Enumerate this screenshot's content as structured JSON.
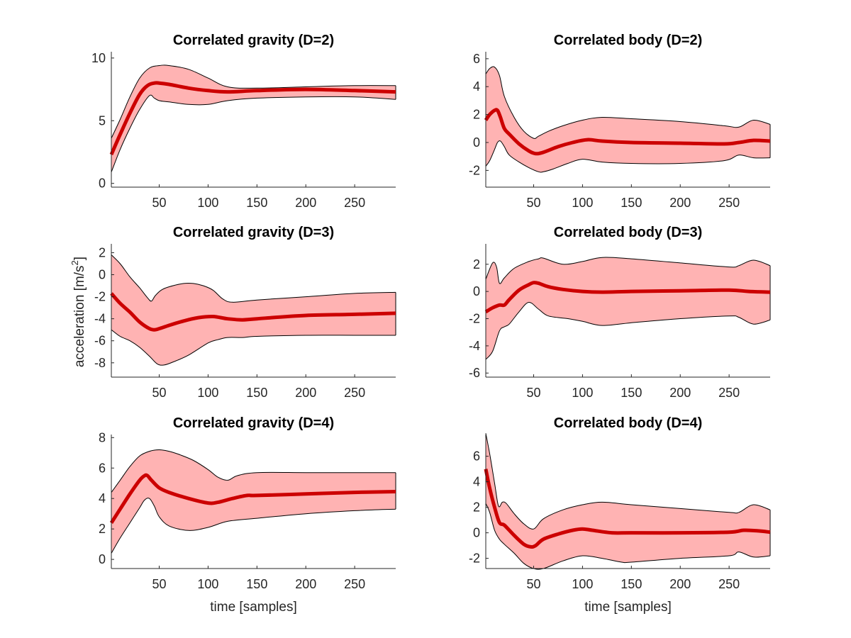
{
  "figure": {
    "ylabel": "acceleration [m/s",
    "ylabel_sup": "2",
    "ylabel_close": "]",
    "band_color": "#ffb3b3",
    "line_color": "#cc0000",
    "outline_color": "#000000"
  },
  "chart_data": [
    {
      "type": "line",
      "title": "Correlated gravity (D=2)",
      "xlabel": "",
      "xlim": [
        1,
        292
      ],
      "ylim": [
        -0.3,
        10.5
      ],
      "xticks": [
        50,
        100,
        150,
        200,
        250
      ],
      "yticks": [
        0,
        5,
        10
      ],
      "mean": {
        "x": [
          1,
          10,
          20,
          30,
          38,
          45,
          50,
          60,
          80,
          100,
          120,
          150,
          200,
          250,
          292
        ],
        "y": [
          2.3,
          3.9,
          5.6,
          7.1,
          7.8,
          8.0,
          8.0,
          7.9,
          7.6,
          7.4,
          7.3,
          7.4,
          7.5,
          7.4,
          7.3
        ]
      },
      "upper": {
        "x": [
          1,
          10,
          20,
          30,
          40,
          50,
          60,
          80,
          100,
          120,
          150,
          200,
          250,
          292
        ],
        "y": [
          3.6,
          5.1,
          6.9,
          8.4,
          9.2,
          9.4,
          9.4,
          9.1,
          8.4,
          7.7,
          7.6,
          7.7,
          7.8,
          7.8
        ]
      },
      "lower": {
        "x": [
          1,
          10,
          20,
          30,
          40,
          45,
          50,
          60,
          80,
          100,
          120,
          150,
          200,
          250,
          292
        ],
        "y": [
          0.9,
          2.7,
          4.4,
          5.9,
          7.0,
          6.8,
          6.6,
          6.5,
          6.3,
          6.3,
          6.6,
          6.8,
          6.9,
          6.9,
          6.7
        ]
      }
    },
    {
      "type": "line",
      "title": "Correlated body (D=2)",
      "xlabel": "",
      "xlim": [
        1,
        292
      ],
      "ylim": [
        -3.2,
        6.5
      ],
      "xticks": [
        50,
        100,
        150,
        200,
        250
      ],
      "yticks": [
        -2,
        0,
        2,
        4,
        6
      ],
      "mean": {
        "x": [
          1,
          5,
          10,
          13,
          16,
          20,
          25,
          35,
          45,
          52,
          60,
          75,
          90,
          105,
          120,
          150,
          200,
          245,
          260,
          275,
          292
        ],
        "y": [
          1.6,
          2.0,
          2.3,
          2.3,
          1.8,
          1.0,
          0.6,
          -0.1,
          -0.6,
          -0.8,
          -0.7,
          -0.3,
          0.0,
          0.2,
          0.1,
          0.0,
          -0.05,
          -0.1,
          0.0,
          0.15,
          0.1
        ]
      },
      "upper": {
        "x": [
          1,
          5,
          10,
          15,
          20,
          30,
          40,
          50,
          55,
          65,
          80,
          100,
          120,
          150,
          200,
          245,
          260,
          275,
          292
        ],
        "y": [
          4.9,
          5.3,
          5.4,
          4.8,
          3.3,
          1.8,
          0.8,
          0.3,
          0.45,
          0.8,
          1.2,
          1.6,
          1.8,
          1.7,
          1.5,
          1.2,
          1.1,
          1.6,
          1.3
        ]
      },
      "lower": {
        "x": [
          1,
          5,
          10,
          13,
          16,
          20,
          25,
          35,
          45,
          55,
          60,
          70,
          85,
          100,
          120,
          150,
          200,
          245,
          260,
          275,
          292
        ],
        "y": [
          -1.7,
          -1.3,
          -0.5,
          0.0,
          0.1,
          -0.3,
          -0.9,
          -1.4,
          -1.8,
          -2.1,
          -2.1,
          -1.9,
          -1.5,
          -1.2,
          -1.4,
          -1.5,
          -1.5,
          -1.3,
          -0.9,
          -1.1,
          -1.1
        ]
      }
    },
    {
      "type": "line",
      "title": "Correlated gravity (D=3)",
      "xlabel": "",
      "xlim": [
        1,
        292
      ],
      "ylim": [
        -9.3,
        2.8
      ],
      "xticks": [
        50,
        100,
        150,
        200,
        250
      ],
      "yticks": [
        -8,
        -6,
        -4,
        -2,
        0,
        2
      ],
      "mean": {
        "x": [
          1,
          10,
          20,
          30,
          40,
          45,
          50,
          60,
          75,
          90,
          105,
          120,
          135,
          150,
          200,
          250,
          292
        ],
        "y": [
          -1.7,
          -2.6,
          -3.4,
          -4.3,
          -4.9,
          -5.0,
          -4.9,
          -4.6,
          -4.2,
          -3.9,
          -3.8,
          -4.0,
          -4.1,
          -4.0,
          -3.7,
          -3.6,
          -3.5
        ]
      },
      "upper": {
        "x": [
          1,
          10,
          20,
          30,
          38,
          42,
          46,
          52,
          60,
          75,
          85,
          95,
          105,
          115,
          125,
          150,
          200,
          250,
          292
        ],
        "y": [
          1.8,
          1.0,
          -0.2,
          -1.2,
          -2.1,
          -2.4,
          -1.9,
          -1.4,
          -1.1,
          -0.8,
          -0.8,
          -1.0,
          -1.4,
          -2.2,
          -2.5,
          -2.3,
          -2.0,
          -1.7,
          -1.6
        ]
      },
      "lower": {
        "x": [
          1,
          10,
          20,
          30,
          40,
          48,
          55,
          65,
          80,
          100,
          110,
          120,
          135,
          150,
          200,
          250,
          292
        ],
        "y": [
          -5.0,
          -5.6,
          -6.0,
          -6.6,
          -7.4,
          -8.1,
          -8.2,
          -7.9,
          -7.3,
          -6.2,
          -5.9,
          -5.7,
          -5.7,
          -5.6,
          -5.5,
          -5.5,
          -5.5
        ]
      }
    },
    {
      "type": "line",
      "title": "Correlated body (D=3)",
      "xlabel": "",
      "xlim": [
        1,
        292
      ],
      "ylim": [
        -6.3,
        3.5
      ],
      "xticks": [
        50,
        100,
        150,
        200,
        250
      ],
      "yticks": [
        -6,
        -4,
        -2,
        0,
        2
      ],
      "mean": {
        "x": [
          1,
          8,
          15,
          20,
          25,
          35,
          45,
          50,
          55,
          65,
          80,
          100,
          120,
          150,
          200,
          250,
          270,
          292
        ],
        "y": [
          -1.5,
          -1.2,
          -1.0,
          -1.0,
          -0.6,
          0.1,
          0.5,
          0.65,
          0.6,
          0.35,
          0.15,
          0.0,
          -0.05,
          0.0,
          0.05,
          0.1,
          0.0,
          -0.05
        ]
      },
      "upper": {
        "x": [
          1,
          8,
          12,
          15,
          20,
          30,
          45,
          55,
          60,
          80,
          100,
          120,
          150,
          200,
          250,
          260,
          275,
          292
        ],
        "y": [
          0.9,
          2.1,
          1.8,
          0.6,
          1.0,
          1.7,
          2.2,
          2.4,
          2.45,
          2.0,
          2.2,
          2.5,
          2.4,
          2.1,
          1.8,
          1.9,
          2.3,
          1.9
        ]
      },
      "lower": {
        "x": [
          1,
          8,
          15,
          20,
          25,
          35,
          45,
          55,
          65,
          85,
          100,
          120,
          150,
          200,
          250,
          260,
          275,
          292
        ],
        "y": [
          -5.0,
          -4.4,
          -2.9,
          -2.6,
          -2.4,
          -1.5,
          -0.8,
          -1.3,
          -1.8,
          -2.0,
          -2.2,
          -2.5,
          -2.3,
          -2.0,
          -1.8,
          -1.9,
          -2.4,
          -2.1
        ]
      }
    },
    {
      "type": "line",
      "title": "Correlated gravity (D=4)",
      "xlabel": "time [samples]",
      "xlim": [
        1,
        292
      ],
      "ylim": [
        -0.6,
        8.2
      ],
      "xticks": [
        50,
        100,
        150,
        200,
        250
      ],
      "yticks": [
        0,
        2,
        4,
        6,
        8
      ],
      "mean": {
        "x": [
          1,
          10,
          20,
          30,
          35,
          38,
          42,
          50,
          60,
          80,
          100,
          110,
          125,
          140,
          150,
          200,
          250,
          292
        ],
        "y": [
          2.4,
          3.3,
          4.3,
          5.2,
          5.5,
          5.5,
          5.2,
          4.7,
          4.4,
          4.0,
          3.7,
          3.75,
          4.0,
          4.2,
          4.2,
          4.3,
          4.4,
          4.45
        ]
      },
      "upper": {
        "x": [
          1,
          10,
          20,
          30,
          40,
          50,
          60,
          70,
          85,
          100,
          110,
          120,
          130,
          150,
          200,
          250,
          292
        ],
        "y": [
          4.4,
          5.2,
          6.1,
          6.8,
          7.1,
          7.2,
          7.1,
          6.9,
          6.5,
          5.9,
          5.4,
          5.2,
          5.5,
          5.7,
          5.7,
          5.7,
          5.7
        ]
      },
      "lower": {
        "x": [
          1,
          10,
          20,
          30,
          35,
          40,
          45,
          50,
          60,
          80,
          100,
          120,
          150,
          200,
          250,
          292
        ],
        "y": [
          0.4,
          1.4,
          2.4,
          3.4,
          3.9,
          4.0,
          3.5,
          2.8,
          2.2,
          1.9,
          2.1,
          2.5,
          2.7,
          3.0,
          3.2,
          3.3
        ]
      }
    },
    {
      "type": "line",
      "title": "Correlated body (D=4)",
      "xlabel": "time [samples]",
      "xlim": [
        1,
        292
      ],
      "ylim": [
        -2.8,
        7.7
      ],
      "xticks": [
        50,
        100,
        150,
        200,
        250
      ],
      "yticks": [
        -2,
        0,
        2,
        4,
        6
      ],
      "mean": {
        "x": [
          1,
          5,
          10,
          15,
          20,
          30,
          40,
          47,
          52,
          60,
          75,
          90,
          100,
          110,
          130,
          150,
          200,
          250,
          265,
          280,
          292
        ],
        "y": [
          5.0,
          3.5,
          2.0,
          0.8,
          0.6,
          -0.2,
          -0.9,
          -1.1,
          -1.0,
          -0.5,
          -0.1,
          0.2,
          0.3,
          0.2,
          0.0,
          0.0,
          0.0,
          0.05,
          0.2,
          0.15,
          0.05
        ]
      },
      "upper": {
        "x": [
          1,
          5,
          10,
          14,
          18,
          22,
          30,
          40,
          50,
          60,
          80,
          100,
          120,
          150,
          200,
          250,
          260,
          275,
          292
        ],
        "y": [
          7.8,
          6.2,
          3.9,
          2.1,
          2.4,
          2.3,
          1.5,
          0.7,
          0.3,
          1.1,
          1.8,
          2.2,
          2.4,
          2.2,
          1.9,
          1.6,
          1.6,
          2.2,
          1.8
        ]
      },
      "lower": {
        "x": [
          1,
          5,
          10,
          15,
          20,
          30,
          40,
          50,
          60,
          80,
          100,
          120,
          140,
          150,
          200,
          250,
          260,
          275,
          292
        ],
        "y": [
          2.3,
          1.6,
          0.2,
          -0.5,
          -0.9,
          -1.6,
          -2.4,
          -2.8,
          -2.8,
          -2.2,
          -1.8,
          -2.0,
          -2.3,
          -2.3,
          -2.0,
          -1.8,
          -1.5,
          -1.9,
          -1.8
        ]
      }
    }
  ]
}
